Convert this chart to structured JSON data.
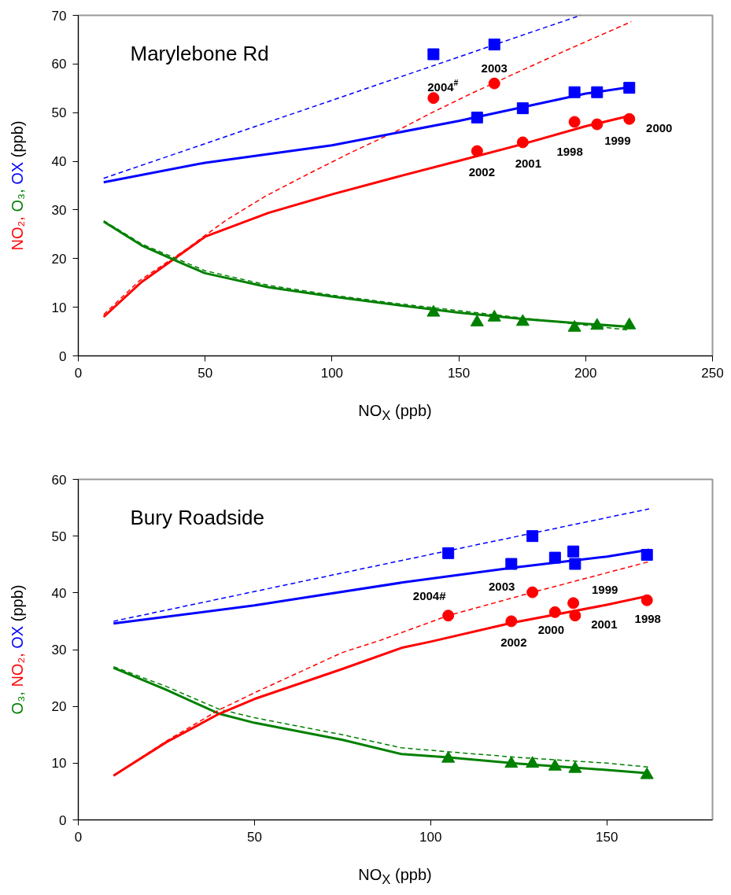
{
  "chart_data": [
    {
      "type": "scatter",
      "title": "Marylebone Rd",
      "xlabel": "NO$_{X}$ (ppb)",
      "ylabel": "NO₂, O₃, OX (ppb)",
      "xlim": [
        0,
        250
      ],
      "ylim": [
        0,
        70
      ],
      "xticks": [
        0,
        50,
        100,
        150,
        200,
        250
      ],
      "yticks": [
        0,
        10,
        20,
        30,
        40,
        50,
        60,
        70
      ],
      "grid": false,
      "series": [
        {
          "marker": "circle",
          "color": "#ff0000",
          "x": [
            140,
            164,
            157.2,
            175.2,
            195.6,
            204.5,
            217.2
          ],
          "values": [
            53,
            56,
            42.1,
            43.9,
            48.1,
            47.6,
            48.7
          ]
        },
        {
          "type": "line",
          "line_style": "solid",
          "color": "#ff0000",
          "x": [
            10,
            25,
            50,
            75,
            100,
            125,
            150,
            175,
            200,
            217
          ],
          "values": [
            8,
            15.2,
            24.5,
            29.4,
            33.2,
            36.7,
            40.1,
            43.5,
            47.2,
            49.3
          ]
        },
        {
          "type": "line",
          "line_style": "dashed",
          "color": "#ff0000",
          "x": [
            10,
            24,
            42.5,
            58,
            74,
            91,
            107.5,
            125,
            139,
            156,
            174,
            191,
            218
          ],
          "values": [
            8.5,
            15.4,
            21.9,
            27.8,
            32.9,
            37.5,
            41.8,
            46.1,
            49.9,
            54.2,
            58.5,
            62.5,
            68.7
          ]
        },
        {
          "marker": "triangle",
          "color": "#008000",
          "x": [
            140,
            164,
            157.2,
            175.2,
            195.6,
            204.5,
            217.2
          ],
          "values": [
            8.9,
            7.9,
            6.9,
            7.0,
            5.8,
            6.2,
            6.3
          ]
        },
        {
          "type": "line",
          "line_style": "solid",
          "color": "#008000",
          "x": [
            10,
            25,
            40,
            50,
            75,
            100,
            125,
            150,
            175,
            200,
            217
          ],
          "values": [
            27.6,
            22.7,
            19.2,
            17,
            14.1,
            12.2,
            10.5,
            8.9,
            7.6,
            6.6,
            6.0
          ]
        },
        {
          "type": "line",
          "line_style": "dashed",
          "color": "#008000",
          "x": [
            10,
            25,
            50,
            75,
            100,
            125,
            150,
            175,
            200,
            217
          ],
          "values": [
            27.8,
            23,
            17.5,
            14.5,
            12.5,
            10.8,
            9.3,
            7.8,
            6.3,
            5.3
          ]
        },
        {
          "marker": "square",
          "color": "#0000ff",
          "x": [
            140,
            164,
            157.2,
            175.2,
            195.6,
            204.5,
            217.2
          ],
          "values": [
            62,
            64,
            49,
            50.9,
            54.2,
            54.2,
            55.1
          ]
        },
        {
          "type": "line",
          "line_style": "solid",
          "color": "#0000ff",
          "x": [
            10,
            50,
            100,
            150,
            200,
            217
          ],
          "values": [
            35.7,
            39.7,
            43.3,
            48.3,
            53.9,
            55.2
          ]
        },
        {
          "type": "line",
          "line_style": "dashed",
          "color": "#0000ff",
          "x": [
            10,
            198
          ],
          "values": [
            36.5,
            70
          ]
        }
      ],
      "annotations": [
        {
          "text": "2004$^{#}$",
          "x": 140,
          "y": 53
        },
        {
          "text": "2003",
          "x": 164,
          "y": 56
        },
        {
          "text": "2002",
          "x": 157.2,
          "y": 42.1
        },
        {
          "text": "2001",
          "x": 175.2,
          "y": 43.9
        },
        {
          "text": "1998",
          "x": 195.6,
          "y": 48.1
        },
        {
          "text": "1999",
          "x": 204.5,
          "y": 47.6
        },
        {
          "text": "2000",
          "x": 217.2,
          "y": 48.7
        }
      ]
    },
    {
      "type": "scatter",
      "title": "Bury Roadside",
      "xlabel": "NO$_{X}$ (ppb)",
      "ylabel": "O₃, NO₂, OX (ppb)",
      "xlim": [
        0,
        180
      ],
      "ylim": [
        0,
        60
      ],
      "xticks": [
        0,
        50,
        100,
        150
      ],
      "yticks": [
        0,
        10,
        20,
        30,
        40,
        50,
        60
      ],
      "grid": false,
      "series": [
        {
          "marker": "triangle",
          "color": "#008000",
          "x": [
            105,
            128.9,
            122.9,
            135.3,
            140.5,
            141,
            161.4
          ],
          "values": [
            10.8,
            9.9,
            9.9,
            9.4,
            null,
            9.0,
            7.9
          ]
        },
        {
          "type": "line",
          "line_style": "solid",
          "color": "#008000",
          "x": [
            10,
            25,
            40,
            50,
            75,
            91.7,
            105,
            125,
            150,
            162
          ],
          "values": [
            26.8,
            22.9,
            18.7,
            17.1,
            14.1,
            11.6,
            11.0,
            9.9,
            8.8,
            8.2
          ]
        },
        {
          "type": "line",
          "line_style": "dashed",
          "color": "#008000",
          "x": [
            10,
            25,
            40,
            50,
            75,
            91.7,
            105,
            125,
            150,
            162
          ],
          "values": [
            27,
            23.5,
            19.5,
            18,
            15,
            12.7,
            12,
            11,
            10,
            9.3
          ]
        },
        {
          "marker": "circle",
          "color": "#ff0000",
          "x": [
            105,
            128.9,
            122.9,
            135.3,
            140.5,
            141,
            161.4
          ],
          "values": [
            36,
            40.1,
            35,
            36.6,
            38.2,
            36,
            38.7
          ]
        },
        {
          "type": "line",
          "line_style": "solid",
          "color": "#ff0000",
          "x": [
            10,
            25,
            40,
            50,
            75,
            91.7,
            100,
            123,
            150,
            162
          ],
          "values": [
            7.8,
            13.7,
            18.7,
            21.3,
            26.6,
            30.3,
            31.4,
            34.7,
            37.9,
            39.5
          ]
        },
        {
          "type": "line",
          "line_style": "dashed",
          "color": "#ff0000",
          "x": [
            10,
            25,
            40,
            50,
            75,
            86,
            105,
            129,
            162
          ],
          "values": [
            7.8,
            13.9,
            19.4,
            22.4,
            29.5,
            31.7,
            36,
            40.1,
            45.5
          ]
        },
        {
          "marker": "square",
          "color": "#0000ff",
          "x": [
            105,
            128.9,
            122.9,
            135.3,
            140.5,
            141,
            161.4
          ],
          "values": [
            47,
            50,
            45.1,
            46.2,
            47.3,
            45.1,
            46.7
          ]
        },
        {
          "type": "line",
          "line_style": "solid",
          "color": "#0000ff",
          "x": [
            10,
            50,
            91.7,
            123,
            150,
            162
          ],
          "values": [
            34.6,
            37.8,
            41.8,
            44.4,
            46.4,
            47.6
          ]
        },
        {
          "type": "line",
          "line_style": "dashed",
          "color": "#0000ff",
          "x": [
            10,
            91.7,
            162
          ],
          "values": [
            35,
            45.7,
            54.8
          ]
        }
      ],
      "annotations": [
        {
          "text": "2004#",
          "x": 105,
          "y": 36
        },
        {
          "text": "2003",
          "x": 128.9,
          "y": 40.1
        },
        {
          "text": "2002",
          "x": 122.9,
          "y": 35
        },
        {
          "text": "2000",
          "x": 135.3,
          "y": 36.6
        },
        {
          "text": "1999",
          "x": 140.5,
          "y": 38.2
        },
        {
          "text": "2001",
          "x": 141,
          "y": 36
        },
        {
          "text": "1998",
          "x": 161.4,
          "y": 38.7
        }
      ]
    }
  ]
}
